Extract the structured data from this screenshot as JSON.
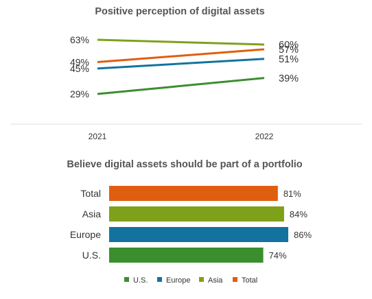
{
  "chart_data": [
    {
      "type": "line",
      "title": "Positive perception of digital assets",
      "x": [
        "2021",
        "2022"
      ],
      "series": [
        {
          "name": "U.S.",
          "values": [
            29,
            39
          ],
          "labels": [
            "29%",
            "39%"
          ],
          "color": "#3a8e2e"
        },
        {
          "name": "Europe",
          "values": [
            45,
            51
          ],
          "labels": [
            "45%",
            "51%"
          ],
          "color": "#13739e"
        },
        {
          "name": "Asia",
          "values": [
            63,
            60
          ],
          "labels": [
            "63%",
            "60%"
          ],
          "color": "#7fa11a"
        },
        {
          "name": "Total",
          "values": [
            49,
            57
          ],
          "labels": [
            "49%",
            "57%"
          ],
          "color": "#e05e0f"
        }
      ],
      "ylim": [
        29,
        63
      ],
      "grid": false
    },
    {
      "type": "bar",
      "orientation": "horizontal",
      "title": "Believe digital assets should be part of a portfolio",
      "categories": [
        "Total",
        "Asia",
        "Europe",
        "U.S."
      ],
      "values": [
        81,
        84,
        86,
        74
      ],
      "labels": [
        "81%",
        "84%",
        "86%",
        "74%"
      ],
      "colors": [
        "#e05e0f",
        "#7fa11a",
        "#13739e",
        "#3a8e2e"
      ],
      "xlim": [
        0,
        86
      ],
      "grid": false
    }
  ],
  "legend": {
    "placement": "bottom",
    "items": [
      {
        "name": "U.S.",
        "color": "#3a8e2e"
      },
      {
        "name": "Europe",
        "color": "#13739e"
      },
      {
        "name": "Asia",
        "color": "#7fa11a"
      },
      {
        "name": "Total",
        "color": "#e05e0f"
      }
    ]
  }
}
